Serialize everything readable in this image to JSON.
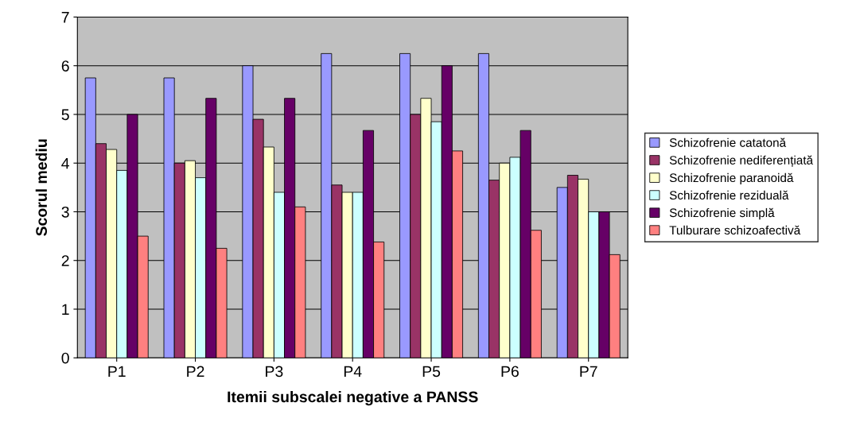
{
  "chart_data": {
    "type": "bar",
    "xlabel": "Itemii subscalei negative a PANSS",
    "ylabel": "Scorul mediu",
    "categories": [
      "P1",
      "P2",
      "P3",
      "P4",
      "P5",
      "P6",
      "P7"
    ],
    "series": [
      {
        "name": "Schizofrenie catatonă",
        "color": "#9999ff",
        "values": [
          5.75,
          5.75,
          6.0,
          6.25,
          6.25,
          6.25,
          3.5
        ]
      },
      {
        "name": "Schizofrenie nediferențiată",
        "color": "#993366",
        "values": [
          4.4,
          4.0,
          4.9,
          3.55,
          5.0,
          3.65,
          3.75
        ]
      },
      {
        "name": "Schizofrenie paranoidă",
        "color": "#ffffcc",
        "values": [
          4.28,
          4.05,
          4.33,
          3.4,
          5.33,
          4.0,
          3.67
        ]
      },
      {
        "name": "Schizofrenie reziduală",
        "color": "#ccffff",
        "values": [
          3.85,
          3.7,
          3.4,
          3.4,
          4.85,
          4.12,
          3.0
        ]
      },
      {
        "name": "Schizofrenie simplă",
        "color": "#660066",
        "values": [
          5.0,
          5.33,
          5.33,
          4.67,
          6.0,
          4.67,
          3.0
        ]
      },
      {
        "name": "Tulburare schizoafectivă",
        "color": "#ff8080",
        "values": [
          2.5,
          2.25,
          3.1,
          2.38,
          4.25,
          2.62,
          2.12
        ]
      }
    ],
    "ylim": [
      0,
      7
    ],
    "yticks": [
      0,
      1,
      2,
      3,
      4,
      5,
      6,
      7
    ],
    "grid": "y",
    "legend": "right"
  }
}
